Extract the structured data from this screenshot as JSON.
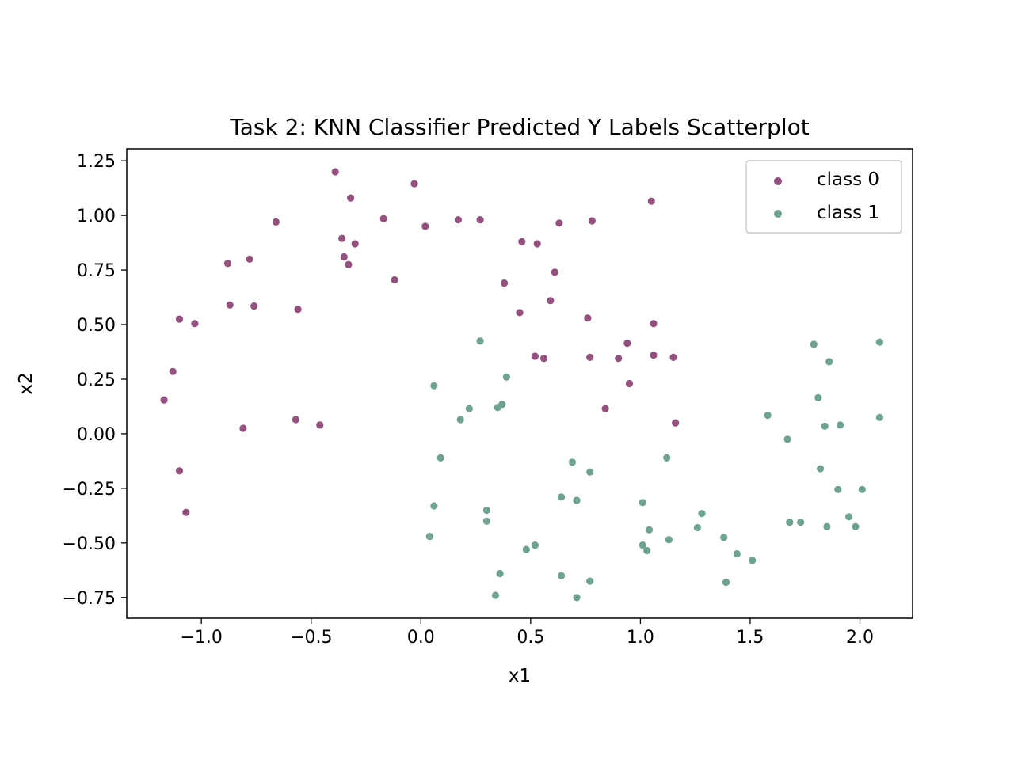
{
  "chart_data": {
    "type": "scatter",
    "title": "Task 2: KNN Classifier Predicted Y Labels Scatterplot",
    "xlabel": "x1",
    "ylabel": "x2",
    "xlim": [
      -1.34,
      2.24
    ],
    "ylim": [
      -0.845,
      1.305
    ],
    "xticks": [
      -1.0,
      -0.5,
      0.0,
      0.5,
      1.0,
      1.5,
      2.0
    ],
    "xtick_labels": [
      "−1.0",
      "−0.5",
      "0.0",
      "0.5",
      "1.0",
      "1.5",
      "2.0"
    ],
    "yticks": [
      1.25,
      1.0,
      0.75,
      0.5,
      0.25,
      0.0,
      -0.25,
      -0.5,
      -0.75
    ],
    "ytick_labels": [
      "1.25",
      "1.00",
      "0.75",
      "0.50",
      "0.25",
      "0.00",
      "−0.25",
      "−0.50",
      "−0.75"
    ],
    "grid": false,
    "legend_position": "top-right",
    "series": [
      {
        "name": "class 0",
        "color": "#94517f",
        "points": [
          [
            -0.39,
            1.2
          ],
          [
            -0.32,
            1.08
          ],
          [
            -0.03,
            1.145
          ],
          [
            1.05,
            1.065
          ],
          [
            -0.66,
            0.97
          ],
          [
            -0.17,
            0.985
          ],
          [
            0.17,
            0.98
          ],
          [
            0.27,
            0.98
          ],
          [
            0.63,
            0.965
          ],
          [
            0.78,
            0.975
          ],
          [
            0.02,
            0.95
          ],
          [
            -0.36,
            0.895
          ],
          [
            -0.3,
            0.87
          ],
          [
            0.46,
            0.88
          ],
          [
            0.53,
            0.87
          ],
          [
            -0.88,
            0.78
          ],
          [
            -0.78,
            0.8
          ],
          [
            -0.35,
            0.81
          ],
          [
            -0.33,
            0.775
          ],
          [
            -0.12,
            0.705
          ],
          [
            0.38,
            0.69
          ],
          [
            0.61,
            0.74
          ],
          [
            -0.87,
            0.59
          ],
          [
            -0.76,
            0.585
          ],
          [
            -0.56,
            0.57
          ],
          [
            0.59,
            0.61
          ],
          [
            0.45,
            0.555
          ],
          [
            -1.1,
            0.525
          ],
          [
            -1.03,
            0.505
          ],
          [
            0.76,
            0.53
          ],
          [
            1.06,
            0.505
          ],
          [
            0.94,
            0.415
          ],
          [
            0.52,
            0.355
          ],
          [
            0.56,
            0.345
          ],
          [
            0.77,
            0.35
          ],
          [
            0.9,
            0.345
          ],
          [
            1.06,
            0.36
          ],
          [
            1.15,
            0.35
          ],
          [
            -1.13,
            0.285
          ],
          [
            0.95,
            0.23
          ],
          [
            -1.17,
            0.155
          ],
          [
            0.84,
            0.115
          ],
          [
            -0.57,
            0.065
          ],
          [
            -0.46,
            0.04
          ],
          [
            -0.81,
            0.025
          ],
          [
            1.16,
            0.05
          ],
          [
            -1.1,
            -0.17
          ],
          [
            -1.07,
            -0.36
          ]
        ]
      },
      {
        "name": "class 1",
        "color": "#6ea291",
        "points": [
          [
            0.27,
            0.425
          ],
          [
            0.39,
            0.26
          ],
          [
            0.06,
            0.22
          ],
          [
            0.22,
            0.115
          ],
          [
            0.35,
            0.12
          ],
          [
            0.37,
            0.135
          ],
          [
            0.18,
            0.065
          ],
          [
            0.09,
            -0.11
          ],
          [
            1.12,
            -0.11
          ],
          [
            0.69,
            -0.13
          ],
          [
            0.77,
            -0.175
          ],
          [
            0.64,
            -0.29
          ],
          [
            0.71,
            -0.305
          ],
          [
            0.06,
            -0.33
          ],
          [
            0.3,
            -0.35
          ],
          [
            0.3,
            -0.4
          ],
          [
            1.01,
            -0.315
          ],
          [
            1.28,
            -0.365
          ],
          [
            1.04,
            -0.44
          ],
          [
            1.26,
            -0.43
          ],
          [
            0.04,
            -0.47
          ],
          [
            1.38,
            -0.475
          ],
          [
            1.13,
            -0.485
          ],
          [
            0.52,
            -0.51
          ],
          [
            0.48,
            -0.53
          ],
          [
            1.01,
            -0.51
          ],
          [
            1.03,
            -0.535
          ],
          [
            1.44,
            -0.55
          ],
          [
            1.51,
            -0.58
          ],
          [
            0.36,
            -0.64
          ],
          [
            0.64,
            -0.65
          ],
          [
            0.77,
            -0.675
          ],
          [
            1.39,
            -0.68
          ],
          [
            0.34,
            -0.74
          ],
          [
            0.71,
            -0.75
          ],
          [
            2.09,
            0.42
          ],
          [
            1.79,
            0.41
          ],
          [
            1.86,
            0.33
          ],
          [
            1.81,
            0.165
          ],
          [
            1.58,
            0.085
          ],
          [
            2.09,
            0.075
          ],
          [
            1.67,
            -0.025
          ],
          [
            1.84,
            0.035
          ],
          [
            1.91,
            0.04
          ],
          [
            1.82,
            -0.16
          ],
          [
            1.9,
            -0.255
          ],
          [
            2.01,
            -0.255
          ],
          [
            1.95,
            -0.38
          ],
          [
            1.68,
            -0.405
          ],
          [
            1.73,
            -0.405
          ],
          [
            1.85,
            -0.425
          ],
          [
            1.98,
            -0.425
          ]
        ]
      }
    ]
  }
}
